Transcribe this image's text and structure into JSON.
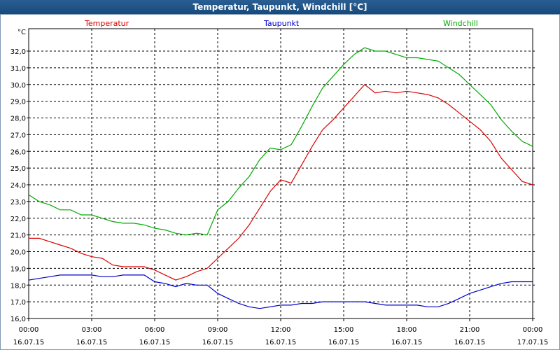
{
  "window": {
    "title": "Temperatur, Taupunkt, Windchill [°C]"
  },
  "colors": {
    "temperatur": "#dd0000",
    "taupunkt": "#0000cc",
    "windchill": "#00aa00",
    "grid": "#000000",
    "titlebar": "#1e5387"
  },
  "chart_data": {
    "type": "line",
    "title": "Temperatur, Taupunkt, Windchill [°C]",
    "ylabel": "°C",
    "ylim": [
      16.0,
      33.0
    ],
    "y_ticks": [
      "16,0",
      "17,0",
      "18,0",
      "19,0",
      "20,0",
      "21,0",
      "22,0",
      "23,0",
      "24,0",
      "25,0",
      "26,0",
      "27,0",
      "28,0",
      "29,0",
      "30,0",
      "31,0",
      "32,0"
    ],
    "x_ticks": [
      {
        "time": "00:00",
        "date": "16.07.15"
      },
      {
        "time": "03:00",
        "date": "16.07.15"
      },
      {
        "time": "06:00",
        "date": "16.07.15"
      },
      {
        "time": "09:00",
        "date": "16.07.15"
      },
      {
        "time": "12:00",
        "date": "16.07.15"
      },
      {
        "time": "15:00",
        "date": "16.07.15"
      },
      {
        "time": "18:00",
        "date": "16.07.15"
      },
      {
        "time": "21:00",
        "date": "16.07.15"
      },
      {
        "time": "00:00",
        "date": "17.07.15"
      }
    ],
    "grid": true,
    "legend_position": "top",
    "x_hours": [
      0,
      0.5,
      1,
      1.5,
      2,
      2.5,
      3,
      3.5,
      4,
      4.5,
      5,
      5.5,
      6,
      6.5,
      7,
      7.5,
      8,
      8.5,
      9,
      9.5,
      10,
      10.5,
      11,
      11.5,
      12,
      12.5,
      13,
      13.5,
      14,
      14.5,
      15,
      15.5,
      16,
      16.5,
      17,
      17.5,
      18,
      18.5,
      19,
      19.5,
      20,
      20.5,
      21,
      21.5,
      22,
      22.5,
      23,
      23.5,
      24
    ],
    "series": [
      {
        "name": "Temperatur",
        "values": [
          20.8,
          20.8,
          20.6,
          20.4,
          20.2,
          19.9,
          19.7,
          19.6,
          19.2,
          19.1,
          19.1,
          19.1,
          18.9,
          18.6,
          18.3,
          18.5,
          18.8,
          19.0,
          19.6,
          20.2,
          20.8,
          21.6,
          22.6,
          23.6,
          24.3,
          24.1,
          25.2,
          26.3,
          27.3,
          27.9,
          28.6,
          29.3,
          30.0,
          29.5,
          29.6,
          29.5,
          29.6,
          29.5,
          29.4,
          29.2,
          28.8,
          28.3,
          27.8,
          27.3,
          26.6,
          25.6,
          24.9,
          24.2,
          24.0
        ]
      },
      {
        "name": "Taupunkt",
        "values": [
          18.3,
          18.4,
          18.5,
          18.6,
          18.6,
          18.6,
          18.6,
          18.5,
          18.5,
          18.6,
          18.6,
          18.6,
          18.2,
          18.1,
          17.9,
          18.1,
          18.0,
          18.0,
          17.5,
          17.2,
          16.9,
          16.7,
          16.6,
          16.7,
          16.8,
          16.8,
          16.9,
          16.9,
          17.0,
          17.0,
          17.0,
          17.0,
          17.0,
          16.9,
          16.8,
          16.8,
          16.8,
          16.8,
          16.7,
          16.7,
          16.9,
          17.2,
          17.5,
          17.7,
          17.9,
          18.1,
          18.2,
          18.2,
          18.2
        ]
      },
      {
        "name": "Windchill",
        "values": [
          23.4,
          23.0,
          22.8,
          22.5,
          22.5,
          22.2,
          22.2,
          22.0,
          21.8,
          21.7,
          21.7,
          21.6,
          21.4,
          21.3,
          21.1,
          21.0,
          21.1,
          21.0,
          22.5,
          23.0,
          23.8,
          24.5,
          25.5,
          26.2,
          26.1,
          26.4,
          27.5,
          28.7,
          29.8,
          30.5,
          31.2,
          31.8,
          32.2,
          32.0,
          32.0,
          31.8,
          31.6,
          31.6,
          31.5,
          31.4,
          31.0,
          30.6,
          30.0,
          29.4,
          28.8,
          27.9,
          27.2,
          26.6,
          26.3
        ]
      }
    ]
  }
}
